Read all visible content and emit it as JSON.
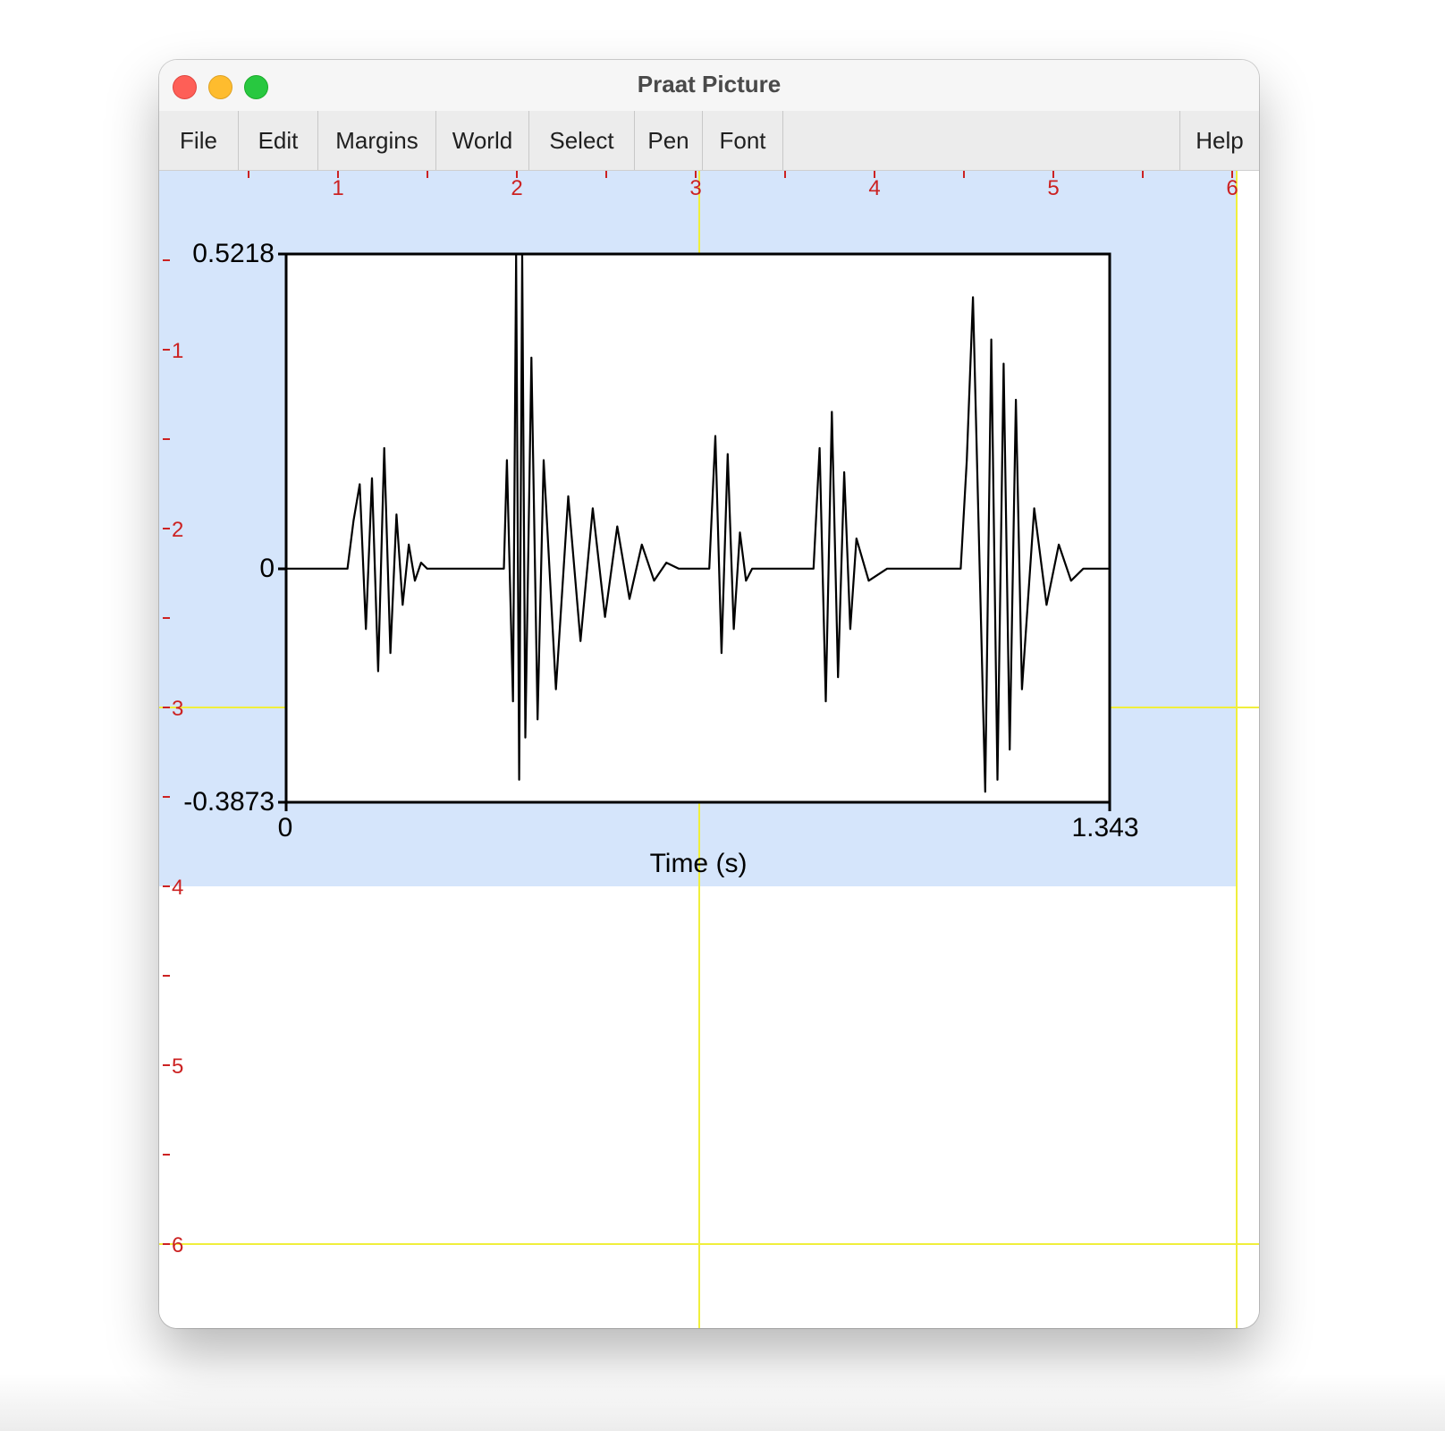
{
  "window": {
    "title": "Praat Picture"
  },
  "menu": [
    "File",
    "Edit",
    "Margins",
    "World",
    "Select",
    "Pen",
    "Font",
    "Help"
  ],
  "ruler": {
    "top_labels": [
      "1",
      "2",
      "3",
      "4",
      "5",
      "6"
    ],
    "left_labels": [
      "1",
      "2",
      "3",
      "4",
      "5",
      "6"
    ]
  },
  "chart_data": {
    "type": "line",
    "title": "",
    "xlabel": "Time (s)",
    "ylabel": "",
    "xlim": [
      0,
      1.343
    ],
    "ylim": [
      -0.3873,
      0.5218
    ],
    "x_tick_labels": [
      "0",
      "1.343"
    ],
    "y_tick_labels": [
      "0.5218",
      "0",
      "-0.3873"
    ],
    "grid": false,
    "series": [
      {
        "x": [
          0.0,
          0.05,
          0.1,
          0.11,
          0.12,
          0.13,
          0.14,
          0.15,
          0.16,
          0.17,
          0.18,
          0.19,
          0.2,
          0.21,
          0.22,
          0.23,
          0.25,
          0.28,
          0.32,
          0.355,
          0.36,
          0.37,
          0.375,
          0.38,
          0.385,
          0.39,
          0.4,
          0.41,
          0.42,
          0.44,
          0.46,
          0.48,
          0.5,
          0.52,
          0.54,
          0.56,
          0.58,
          0.6,
          0.62,
          0.64,
          0.66,
          0.69,
          0.7,
          0.71,
          0.72,
          0.73,
          0.74,
          0.75,
          0.76,
          0.78,
          0.82,
          0.86,
          0.87,
          0.88,
          0.89,
          0.9,
          0.91,
          0.92,
          0.93,
          0.95,
          0.98,
          1.02,
          1.1,
          1.11,
          1.12,
          1.14,
          1.15,
          1.16,
          1.17,
          1.18,
          1.19,
          1.2,
          1.22,
          1.24,
          1.26,
          1.28,
          1.3,
          1.343
        ],
        "y": [
          0.0,
          0.0,
          0.0,
          0.08,
          0.14,
          -0.1,
          0.15,
          -0.17,
          0.2,
          -0.14,
          0.09,
          -0.06,
          0.04,
          -0.02,
          0.01,
          0.0,
          0.0,
          0.0,
          0.0,
          0.0,
          0.18,
          -0.22,
          0.52,
          -0.35,
          0.52,
          -0.28,
          0.35,
          -0.25,
          0.18,
          -0.2,
          0.12,
          -0.12,
          0.1,
          -0.08,
          0.07,
          -0.05,
          0.04,
          -0.02,
          0.01,
          0.0,
          0.0,
          0.0,
          0.22,
          -0.14,
          0.19,
          -0.1,
          0.06,
          -0.02,
          0.0,
          0.0,
          0.0,
          0.0,
          0.2,
          -0.22,
          0.26,
          -0.18,
          0.16,
          -0.1,
          0.05,
          -0.02,
          0.0,
          0.0,
          0.0,
          0.18,
          0.45,
          -0.37,
          0.38,
          -0.35,
          0.34,
          -0.3,
          0.28,
          -0.2,
          0.1,
          -0.06,
          0.04,
          -0.02,
          0.0,
          0.0
        ]
      }
    ]
  }
}
